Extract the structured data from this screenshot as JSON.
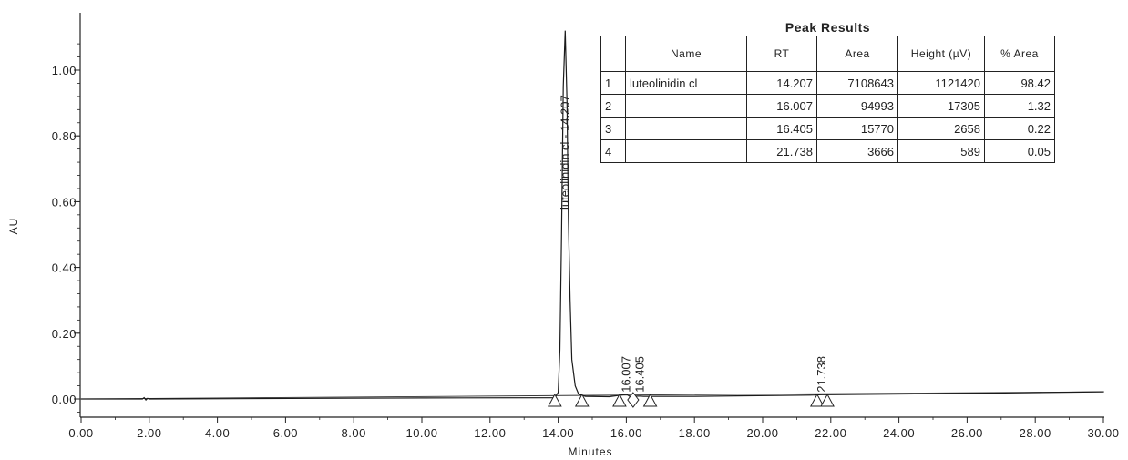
{
  "chart_data": {
    "type": "line",
    "title": "",
    "xlabel": "Minutes",
    "ylabel": "AU",
    "xlim": [
      0,
      30
    ],
    "ylim": [
      -0.06,
      1.15
    ],
    "x_ticks": [
      "0.00",
      "2.00",
      "4.00",
      "6.00",
      "8.00",
      "10.00",
      "12.00",
      "14.00",
      "16.00",
      "18.00",
      "20.00",
      "22.00",
      "24.00",
      "26.00",
      "28.00",
      "30.00"
    ],
    "x_tick_values": [
      0,
      2,
      4,
      6,
      8,
      10,
      12,
      14,
      16,
      18,
      20,
      22,
      24,
      26,
      28,
      30
    ],
    "y_ticks": [
      "0.00",
      "0.20",
      "0.40",
      "0.60",
      "0.80",
      "1.00"
    ],
    "y_tick_values": [
      0,
      0.2,
      0.4,
      0.6,
      0.8,
      1.0
    ],
    "grid": false,
    "series": [
      {
        "x": [
          0,
          1.8,
          1.85,
          1.9,
          1.95,
          2.0,
          10,
          13.9,
          14.0,
          14.05,
          14.1,
          14.15,
          14.207,
          14.26,
          14.3,
          14.35,
          14.4,
          14.5,
          14.6,
          14.8,
          15.5,
          16.007,
          16.1,
          16.405,
          16.5,
          18,
          21.5,
          21.738,
          22,
          26,
          30
        ],
        "y": [
          0.0,
          0.0,
          0.004,
          -0.003,
          0.002,
          0.0,
          0.003,
          0.004,
          0.02,
          0.15,
          0.5,
          0.95,
          1.12,
          0.9,
          0.55,
          0.3,
          0.12,
          0.04,
          0.015,
          0.008,
          0.007,
          0.014,
          0.008,
          0.009,
          0.008,
          0.008,
          0.012,
          0.013,
          0.013,
          0.017,
          0.022
        ]
      }
    ],
    "peak_labels": [
      {
        "text": "luteolinidin cl - 14.207",
        "x": 14.207
      },
      {
        "text": "16.007",
        "x": 16.007
      },
      {
        "text": "16.405",
        "x": 16.405
      },
      {
        "text": "21.738",
        "x": 21.738
      }
    ],
    "integration_marks": [
      {
        "x": 13.9,
        "shape": "triangle"
      },
      {
        "x": 14.7,
        "shape": "triangle"
      },
      {
        "x": 15.8,
        "shape": "triangle"
      },
      {
        "x": 16.2,
        "shape": "diamond"
      },
      {
        "x": 16.7,
        "shape": "triangle"
      },
      {
        "x": 21.6,
        "shape": "triangle"
      },
      {
        "x": 21.9,
        "shape": "triangle"
      }
    ]
  },
  "peak_table": {
    "title": "Peak Results",
    "headers": [
      "",
      "Name",
      "RT",
      "Area",
      "Height (µV)",
      "% Area"
    ],
    "rows": [
      [
        "1",
        "luteolinidin cl",
        "14.207",
        "7108643",
        "1121420",
        "98.42"
      ],
      [
        "2",
        "",
        "16.007",
        "94993",
        "17305",
        "1.32"
      ],
      [
        "3",
        "",
        "16.405",
        "15770",
        "2658",
        "0.22"
      ],
      [
        "4",
        "",
        "21.738",
        "3666",
        "589",
        "0.05"
      ]
    ]
  }
}
